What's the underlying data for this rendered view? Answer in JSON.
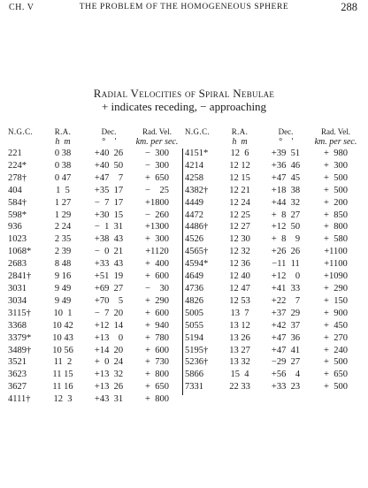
{
  "header": {
    "chapter": "CH. V",
    "running_title": "THE PROBLEM OF THE HOMOGENEOUS SPHERE",
    "page_number": "288"
  },
  "table_title": "Radial Velocities of Spiral Nebulae",
  "table_subtitle": "+ indicates receding, − approaching",
  "columns": {
    "ngc": "N.G.C.",
    "ra": "R.A.",
    "dec": "Dec.",
    "vel": "Rad. Vel.",
    "ra_units": "h  m",
    "dec_units": "°    ′",
    "vel_units": "km. per sec."
  },
  "left_rows": [
    {
      "ngc": "221",
      "ra": "0 38",
      "dec": "+40  26",
      "vel": "−  300"
    },
    {
      "ngc": "224*",
      "ra": "0 38",
      "dec": "+40  50",
      "vel": "−  300"
    },
    {
      "ngc": "278†",
      "ra": "0 47",
      "dec": "+47    7",
      "vel": "+  650"
    },
    {
      "ngc": "404",
      "ra": "1  5",
      "dec": "+35  17",
      "vel": "−    25"
    },
    {
      "ngc": "584†",
      "ra": "1 27",
      "dec": "−  7  17",
      "vel": "+1800"
    },
    {
      "ngc": "598*",
      "ra": "1 29",
      "dec": "+30  15",
      "vel": "−  260"
    },
    {
      "ngc": "936",
      "ra": "2 24",
      "dec": "−  1  31",
      "vel": "+1300"
    },
    {
      "ngc": "1023",
      "ra": "2 35",
      "dec": "+38  43",
      "vel": "+  300"
    },
    {
      "ngc": "1068*",
      "ra": "2 39",
      "dec": "−  0  21",
      "vel": "+1120"
    },
    {
      "ngc": "2683",
      "ra": "8 48",
      "dec": "+33  43",
      "vel": "+  400"
    },
    {
      "ngc": "2841†",
      "ra": "9 16",
      "dec": "+51  19",
      "vel": "+  600"
    },
    {
      "ngc": "3031",
      "ra": "9 49",
      "dec": "+69  27",
      "vel": "−    30"
    },
    {
      "ngc": "3034",
      "ra": "9 49",
      "dec": "+70    5",
      "vel": "+  290"
    },
    {
      "ngc": "3115†",
      "ra": "10  1",
      "dec": "−  7  20",
      "vel": "+  600"
    },
    {
      "ngc": "3368",
      "ra": "10 42",
      "dec": "+12  14",
      "vel": "+  940"
    },
    {
      "ngc": "3379*",
      "ra": "10 43",
      "dec": "+13    0",
      "vel": "+  780"
    },
    {
      "ngc": "3489†",
      "ra": "10 56",
      "dec": "+14  20",
      "vel": "+  600"
    },
    {
      "ngc": "3521",
      "ra": "11  2",
      "dec": "+  0  24",
      "vel": "+  730"
    },
    {
      "ngc": "3623",
      "ra": "11 15",
      "dec": "+13  32",
      "vel": "+  800"
    },
    {
      "ngc": "3627",
      "ra": "11 16",
      "dec": "+13  26",
      "vel": "+  650"
    },
    {
      "ngc": "4111†",
      "ra": "12  3",
      "dec": "+43  31",
      "vel": "+  800"
    }
  ],
  "right_rows": [
    {
      "ngc": "4151*",
      "ra": "12  6",
      "dec": "+39  51",
      "vel": "+  980"
    },
    {
      "ngc": "4214",
      "ra": "12 12",
      "dec": "+36  46",
      "vel": "+  300"
    },
    {
      "ngc": "4258",
      "ra": "12 15",
      "dec": "+47  45",
      "vel": "+  500"
    },
    {
      "ngc": "4382†",
      "ra": "12 21",
      "dec": "+18  38",
      "vel": "+  500"
    },
    {
      "ngc": "4449",
      "ra": "12 24",
      "dec": "+44  32",
      "vel": "+  200"
    },
    {
      "ngc": "4472",
      "ra": "12 25",
      "dec": "+  8  27",
      "vel": "+  850"
    },
    {
      "ngc": "4486†",
      "ra": "12 27",
      "dec": "+12  50",
      "vel": "+  800"
    },
    {
      "ngc": "4526",
      "ra": "12 30",
      "dec": "+  8    9",
      "vel": "+  580"
    },
    {
      "ngc": "4565†",
      "ra": "12 32",
      "dec": "+26  26",
      "vel": "+1100"
    },
    {
      "ngc": "4594*",
      "ra": "12 36",
      "dec": "−11  11",
      "vel": "+1100"
    },
    {
      "ngc": "4649",
      "ra": "12 40",
      "dec": "+12    0",
      "vel": "+1090"
    },
    {
      "ngc": "4736",
      "ra": "12 47",
      "dec": "+41  33",
      "vel": "+  290"
    },
    {
      "ngc": "4826",
      "ra": "12 53",
      "dec": "+22    7",
      "vel": "+  150"
    },
    {
      "ngc": "5005",
      "ra": "13  7",
      "dec": "+37  29",
      "vel": "+  900"
    },
    {
      "ngc": "5055",
      "ra": "13 12",
      "dec": "+42  37",
      "vel": "+  450"
    },
    {
      "ngc": "5194",
      "ra": "13 26",
      "dec": "+47  36",
      "vel": "+  270"
    },
    {
      "ngc": "5195†",
      "ra": "13 27",
      "dec": "+47  41",
      "vel": "+  240"
    },
    {
      "ngc": "5236†",
      "ra": "13 32",
      "dec": "−29  27",
      "vel": "+  500"
    },
    {
      "ngc": "5866",
      "ra": "15  4",
      "dec": "+56    4",
      "vel": "+  650"
    },
    {
      "ngc": "7331",
      "ra": "22 33",
      "dec": "+33  23",
      "vel": "+  500"
    }
  ]
}
